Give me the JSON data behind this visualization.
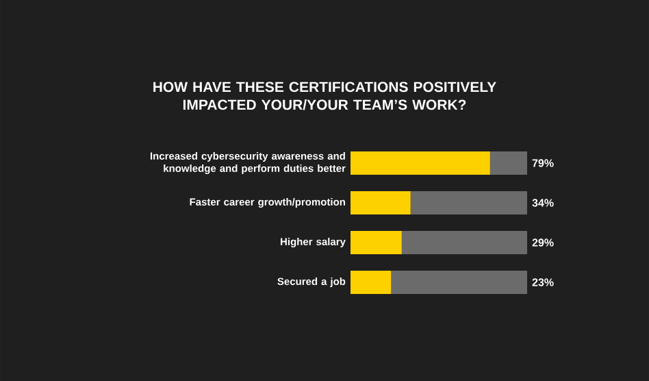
{
  "chart_data": {
    "type": "bar",
    "orientation": "horizontal",
    "stacked": true,
    "title": "HOW HAVE THESE CERTIFICATIONS POSITIVELY IMPACTED YOUR/YOUR TEAM’S WORK?",
    "categories": [
      "Increased cybersecurity awareness and knowledge and perform duties better",
      "Faster career growth/promotion",
      "Higher salary",
      "Secured a job"
    ],
    "series": [
      {
        "color": "#fdd000",
        "values": [
          79,
          34,
          29,
          23
        ],
        "value_labels": [
          "79%",
          "34%",
          "29%",
          "23%"
        ]
      },
      {
        "color": "#6b6b6b",
        "values": [
          21,
          66,
          71,
          77
        ]
      }
    ],
    "xlim": [
      0,
      100
    ],
    "tick_labels": "y"
  }
}
